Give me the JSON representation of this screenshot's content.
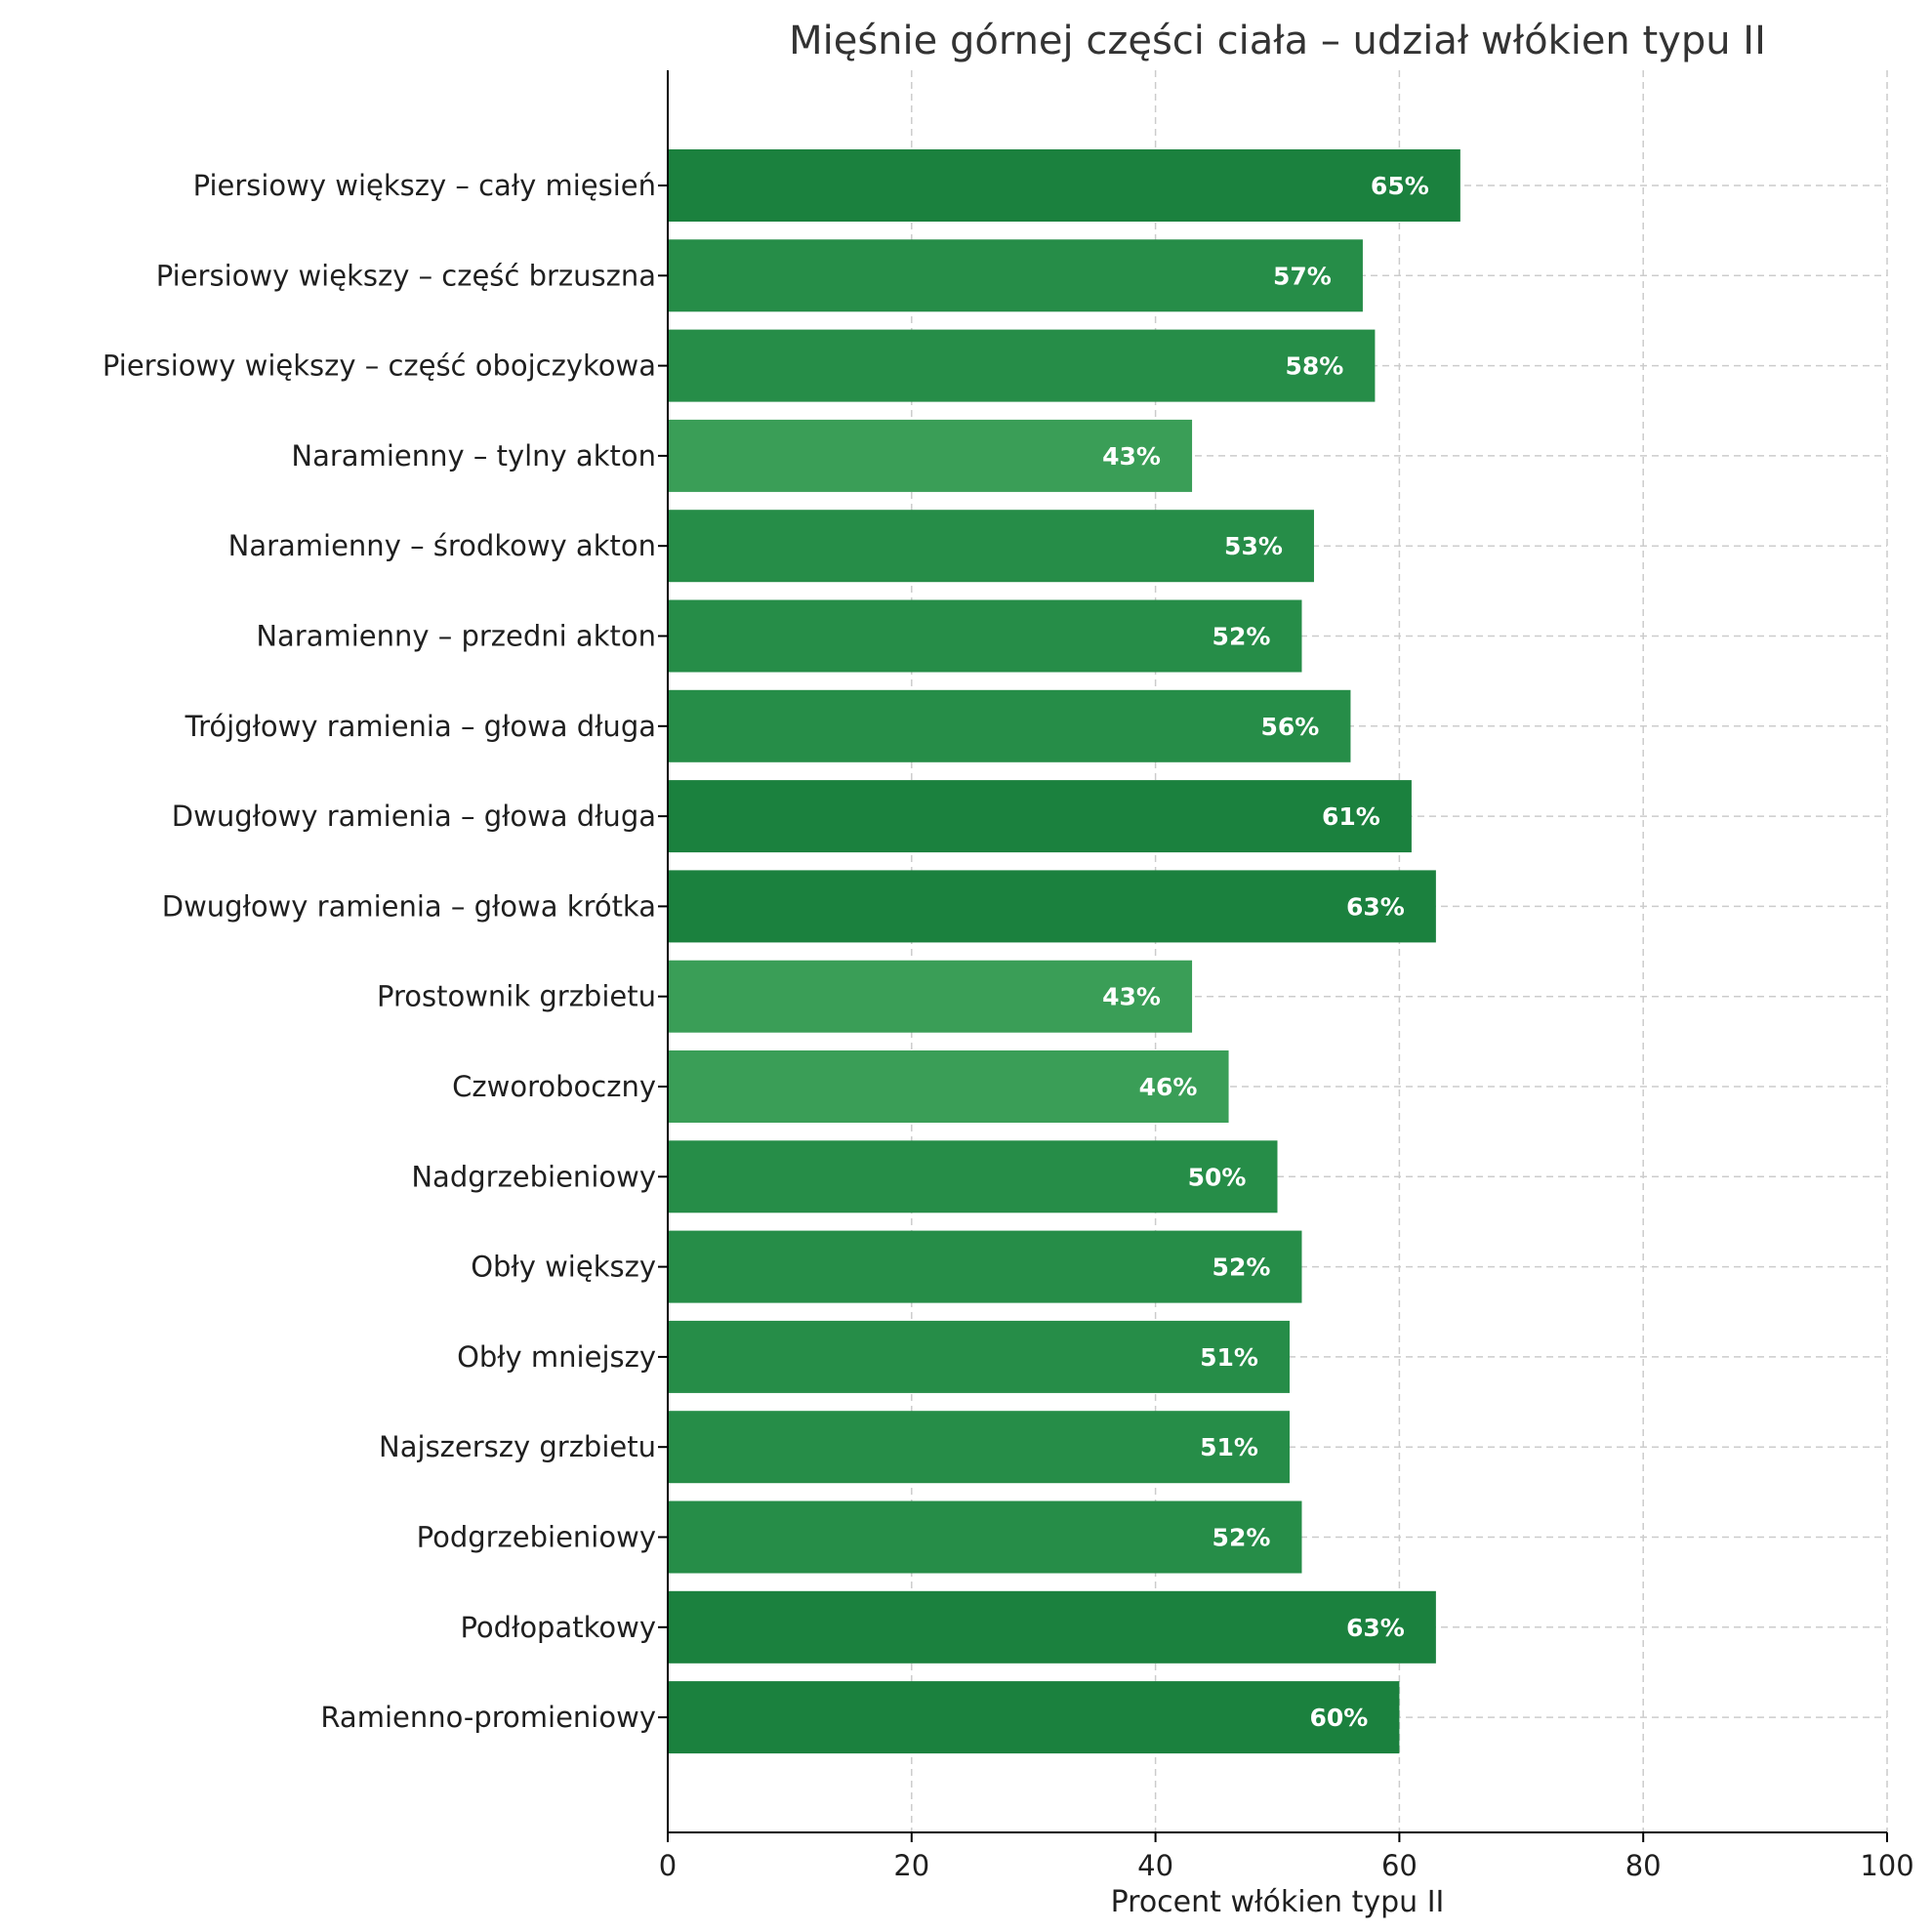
{
  "chart_data": {
    "type": "bar",
    "orientation": "horizontal",
    "title": "Mięśnie górnej części ciała – udział włókien typu II",
    "xlabel": "Procent włókien typu II",
    "ylabel": "",
    "xlim": [
      0,
      100
    ],
    "xticks": [
      "0",
      "20",
      "40",
      "60",
      "80",
      "100"
    ],
    "grid": true,
    "categories": [
      "Piersiowy większy – cały mięsień",
      "Piersiowy większy – część brzuszna",
      "Piersiowy większy – część obojczykowa",
      "Naramienny – tylny akton",
      "Naramienny – środkowy akton",
      "Naramienny – przedni akton",
      "Trójgłowy ramienia – głowa długa",
      "Dwugłowy ramienia – głowa długa",
      "Dwugłowy ramienia – głowa krótka",
      "Prostownik grzbietu",
      "Czworoboczny",
      "Nadgrzebieniowy",
      "Obły większy",
      "Obły mniejszy",
      "Najszerszy grzbietu",
      "Podgrzebieniowy",
      "Podłopatkowy",
      "Ramienno-promieniowy"
    ],
    "values": [
      65,
      57,
      58,
      43,
      53,
      52,
      56,
      61,
      63,
      43,
      46,
      50,
      52,
      51,
      51,
      52,
      63,
      60
    ],
    "value_labels": [
      "65%",
      "57%",
      "58%",
      "43%",
      "53%",
      "52%",
      "56%",
      "61%",
      "63%",
      "43%",
      "46%",
      "50%",
      "52%",
      "51%",
      "51%",
      "52%",
      "63%",
      "60%"
    ],
    "colors": {
      "high": "#1b813e",
      "mid": "#268d48",
      "low": "#3a9e57",
      "text": "#ffffff",
      "grid": "#cccccc"
    }
  }
}
